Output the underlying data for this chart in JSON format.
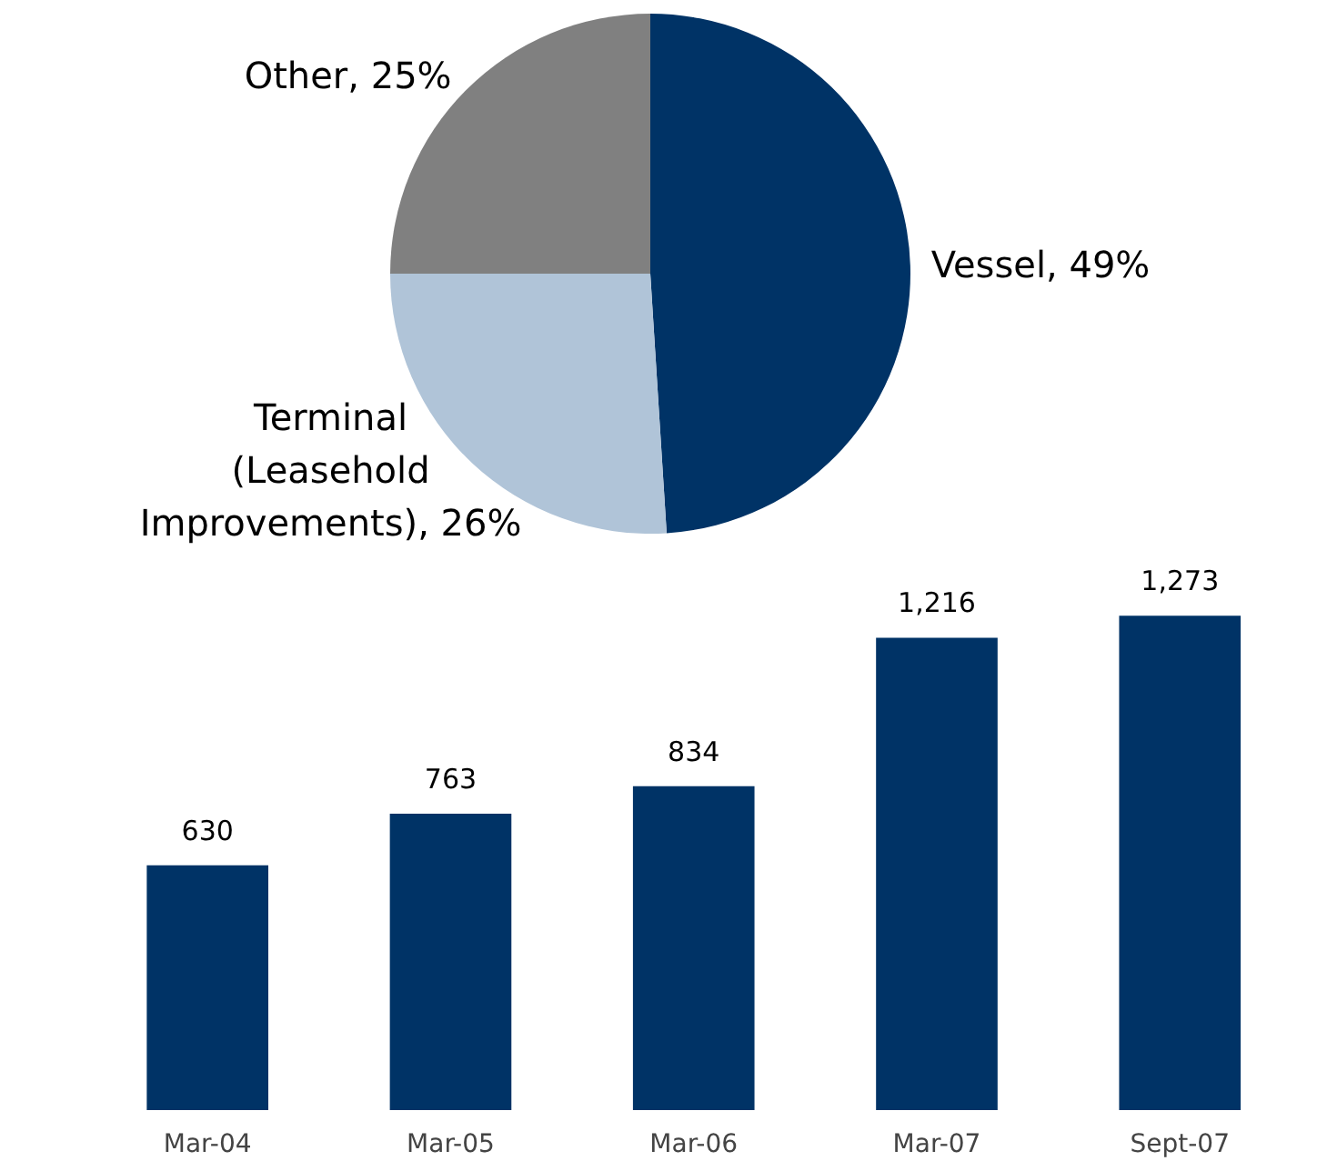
{
  "chart_data": [
    {
      "type": "pie",
      "categories": [
        "Vessel",
        "Terminal (Leasehold Improvements)",
        "Other"
      ],
      "values": [
        49,
        26,
        25
      ],
      "value_labels": [
        "49%",
        "26%",
        "25%"
      ],
      "colors": [
        "#003366",
        "#b0c4d8",
        "#808080"
      ]
    },
    {
      "type": "bar",
      "categories": [
        "Mar-04",
        "Mar-05",
        "Mar-06",
        "Mar-07",
        "Sept-07"
      ],
      "values": [
        630,
        763,
        834,
        1216,
        1273
      ],
      "value_labels": [
        "630",
        "763",
        "834",
        "1,216",
        "1,273"
      ],
      "color": "#003366",
      "grid": false
    }
  ]
}
